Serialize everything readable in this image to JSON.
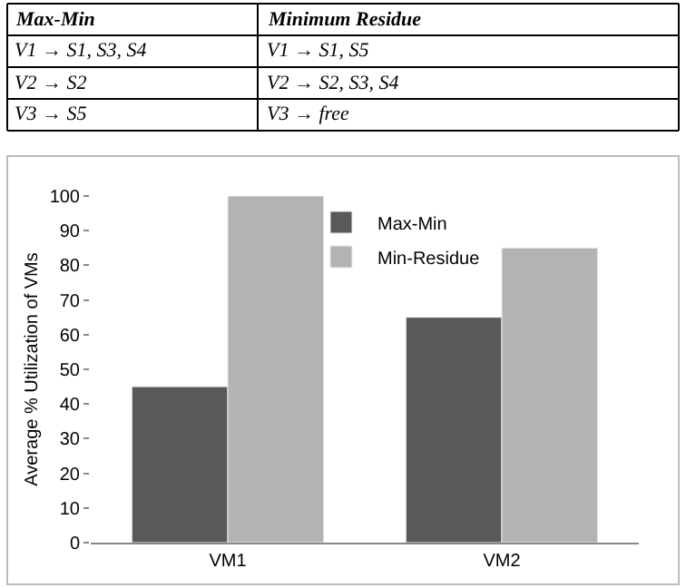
{
  "chart_data": {
    "type": "bar",
    "categories": [
      "VM1",
      "VM2"
    ],
    "series": [
      {
        "name": "Max-Min",
        "color": "#595959",
        "values": [
          45,
          65
        ]
      },
      {
        "name": "Min-Residue",
        "color": "#b3b3b3",
        "values": [
          100,
          85
        ]
      }
    ],
    "ylabel": "Average % Utilization of VMs",
    "ylim": [
      0,
      100
    ],
    "yticks": [
      0,
      10,
      20,
      30,
      40,
      50,
      60,
      70,
      80,
      90,
      100
    ],
    "grid": false,
    "legend": "top",
    "annotations": [
      "Max-Min",
      "Minimum Residue",
      "V1 → S1, S3, S4",
      "V1 → S1, S5",
      "V2 → S2",
      "V2 → S2, S3, S4",
      "V3 → S5",
      "V3 → free"
    ]
  }
}
